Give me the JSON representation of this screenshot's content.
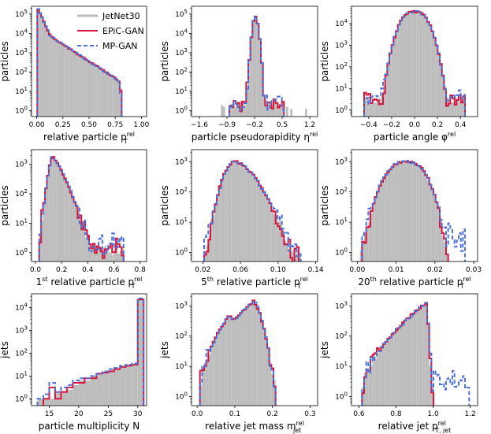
{
  "legend": {
    "placement": "top-right of first panel",
    "entries": [
      {
        "name": "JetNet30",
        "color": "#bdbdbd"
      },
      {
        "name": "EPiC-GAN",
        "color": "#d6163d"
      },
      {
        "name": "MP-GAN",
        "color": "#4a72d8"
      }
    ]
  },
  "chart_data": [
    {
      "type": "histogram",
      "xlabel": "relative particle p",
      "xlabel_sub": "T",
      "xlabel_sup": "rel",
      "ylabel": "particles",
      "yscale": "log",
      "xlim": [
        -0.05,
        1.05
      ],
      "ylim_exp": [
        -0.3,
        5.4
      ],
      "xticks": [
        0.0,
        0.25,
        0.5,
        0.75,
        1.0
      ],
      "xtick_labels": [
        "0.00",
        "0.25",
        "0.50",
        "0.75",
        "1.00"
      ],
      "yticks_exp": [
        0,
        1,
        2,
        3,
        4,
        5
      ],
      "shape": {
        "kind": "expdecay",
        "start": 0.0,
        "peak": 0.01,
        "end": 0.82,
        "peakExp": 5.3,
        "k1": 12,
        "k2": 3.2,
        "cut": 0.78
      }
    },
    {
      "type": "histogram",
      "xlabel": "particle pseudorapidity η",
      "xlabel_sub": "",
      "xlabel_sup": "rel",
      "ylabel": "particles",
      "yscale": "log",
      "xlim": [
        -1.8,
        1.4
      ],
      "ylim_exp": [
        -0.3,
        5.4
      ],
      "xticks": [
        -1.6,
        -0.9,
        -0.2,
        0.5,
        1.2
      ],
      "xtick_labels": [
        "−1.6",
        "−0.9",
        "−0.2",
        "0.5",
        "1.2"
      ],
      "yticks_exp": [
        0,
        1,
        2,
        3,
        4,
        5
      ],
      "shape": {
        "kind": "peak",
        "start": -0.82,
        "peak": -0.2,
        "end": 0.52,
        "peakExp": 4.9,
        "widthL": 0.22,
        "widthR": 0.25,
        "powL": 1.4,
        "powR": 2.2,
        "floorExp": 0.3,
        "outliers": [
          [
            -1.05,
            0.3
          ],
          [
            -0.95,
            0.2
          ],
          [
            0.6,
            0.2
          ],
          [
            0.75,
            0.1
          ],
          [
            1.1,
            0.1
          ]
        ]
      }
    },
    {
      "type": "histogram",
      "xlabel": "particle angle φ",
      "xlabel_sub": "",
      "xlabel_sup": "rel",
      "ylabel": "particles",
      "yscale": "log",
      "xlim": [
        -0.55,
        0.55
      ],
      "ylim_exp": [
        -0.3,
        4.8
      ],
      "xticks": [
        -0.4,
        -0.2,
        0.0,
        0.2,
        0.4
      ],
      "xtick_labels": [
        "−0.4",
        "−0.2",
        "0.0",
        "0.2",
        "0.4"
      ],
      "yticks_exp": [
        0,
        1,
        2,
        3,
        4
      ],
      "shape": {
        "kind": "peak",
        "start": -0.44,
        "peak": 0.0,
        "end": 0.44,
        "peakExp": 4.55,
        "widthL": 0.28,
        "widthR": 0.28,
        "powL": 2.6,
        "powR": 2.6,
        "floorExp": 0.5
      }
    },
    {
      "type": "histogram",
      "xlabel": "1",
      "xlabel_sup1": "st",
      "xlabel_mid": " relative particle p",
      "xlabel_sub": "T",
      "xlabel_sup": "rel",
      "ylabel": "particles",
      "yscale": "log",
      "xlim": [
        -0.03,
        0.85
      ],
      "ylim_exp": [
        -0.3,
        3.5
      ],
      "xticks": [
        0.0,
        0.2,
        0.4,
        0.6,
        0.8
      ],
      "xtick_labels": [
        "0.0",
        "0.2",
        "0.4",
        "0.6",
        "0.8"
      ],
      "yticks_exp": [
        0,
        1,
        2,
        3
      ],
      "shape": {
        "kind": "peak",
        "start": 0.03,
        "peak": 0.13,
        "end": 0.68,
        "peakExp": 3.25,
        "widthL": 0.1,
        "widthR": 0.3,
        "powL": 1.6,
        "powR": 1.3,
        "floorExp": 0.1
      }
    },
    {
      "type": "histogram",
      "xlabel": "5",
      "xlabel_sup1": "th",
      "xlabel_mid": " relative particle p",
      "xlabel_sub": "T",
      "xlabel_sup": "rel",
      "ylabel": "particles",
      "yscale": "log",
      "xlim": [
        0.008,
        0.142
      ],
      "ylim_exp": [
        -0.3,
        3.4
      ],
      "xticks": [
        0.02,
        0.06,
        0.1,
        0.14
      ],
      "xtick_labels": [
        "0.02",
        "0.06",
        "0.10",
        "0.14"
      ],
      "yticks_exp": [
        0,
        1,
        2,
        3
      ],
      "shape": {
        "kind": "peak",
        "start": 0.022,
        "peak": 0.054,
        "end": 0.125,
        "peakExp": 3.0,
        "widthL": 0.03,
        "widthR": 0.06,
        "powL": 2.0,
        "powR": 1.7,
        "floorExp": 0.0
      }
    },
    {
      "type": "histogram",
      "xlabel": "20",
      "xlabel_sup1": "th",
      "xlabel_mid": " relative particle p",
      "xlabel_sub": "T",
      "xlabel_sup": "rel",
      "ylabel": "particles",
      "yscale": "log",
      "xlim": [
        -0.0015,
        0.031
      ],
      "ylim_exp": [
        -0.3,
        3.4
      ],
      "xticks": [
        0.0,
        0.01,
        0.02,
        0.03
      ],
      "xtick_labels": [
        "0.00",
        "0.01",
        "0.02",
        "0.03"
      ],
      "yticks_exp": [
        0,
        1,
        2,
        3
      ],
      "shape": {
        "kind": "peak",
        "start": 0.0005,
        "peak": 0.0125,
        "end": 0.0235,
        "peakExp": 3.0,
        "widthL": 0.0115,
        "widthR": 0.0105,
        "powL": 2.4,
        "powR": 2.8,
        "floorExp": 0.0
      }
    },
    {
      "type": "histogram",
      "xlabel": "particle multiplicity N",
      "xlabel_sub": "",
      "xlabel_sup": "",
      "ylabel": "jets",
      "yscale": "log",
      "xlim": [
        12,
        31.5
      ],
      "ylim_exp": [
        -0.3,
        4.6
      ],
      "xticks": [
        15,
        20,
        25,
        30
      ],
      "xtick_labels": [
        "15",
        "20",
        "25",
        "30"
      ],
      "yticks_exp": [
        0,
        1,
        2,
        3,
        4
      ],
      "bins_x": [
        13,
        14,
        15,
        16,
        17,
        18,
        19,
        20,
        21,
        22,
        23,
        24,
        25,
        26,
        27,
        28,
        29,
        30,
        31
      ],
      "real_exp": [
        0.0,
        0.0,
        0.0,
        0.3,
        0.3,
        0.4,
        0.6,
        0.8,
        0.8,
        1.0,
        1.1,
        1.15,
        1.25,
        1.3,
        1.4,
        1.45,
        1.5,
        4.35
      ],
      "epic_exp": [
        null,
        0.0,
        0.5,
        0.0,
        0.3,
        0.5,
        0.7,
        0.7,
        0.9,
        0.9,
        1.1,
        1.15,
        1.2,
        1.3,
        1.4,
        1.45,
        1.5,
        4.35
      ],
      "mp_exp": [
        0.0,
        0.2,
        0.7,
        0.3,
        0.5,
        0.6,
        0.8,
        0.9,
        0.9,
        1.0,
        1.1,
        1.2,
        1.3,
        1.35,
        1.45,
        1.5,
        1.55,
        4.4
      ]
    },
    {
      "type": "histogram",
      "xlabel": "relative jet mass m",
      "xlabel_sub": "jet",
      "xlabel_sup": "rel",
      "ylabel": "jets",
      "yscale": "log",
      "xlim": [
        -0.015,
        0.32
      ],
      "ylim_exp": [
        -0.3,
        3.4
      ],
      "xticks": [
        0.0,
        0.1,
        0.2,
        0.3
      ],
      "xtick_labels": [
        "0.0",
        "0.1",
        "0.2",
        "0.3"
      ],
      "yticks_exp": [
        0,
        1,
        2,
        3
      ],
      "shape": {
        "kind": "bimodal",
        "start": 0.008,
        "end": 0.21,
        "peakExp": 3.15,
        "floorExp": 0.0
      }
    },
    {
      "type": "histogram",
      "xlabel": "relative jet p",
      "xlabel_sub": "T, jet",
      "xlabel_sup": "rel",
      "ylabel": "jets",
      "yscale": "log",
      "xlim": [
        0.56,
        1.24
      ],
      "ylim_exp": [
        -0.3,
        3.4
      ],
      "xticks": [
        0.6,
        0.8,
        1.0,
        1.2
      ],
      "xtick_labels": [
        "0.6",
        "0.8",
        "1.0",
        "1.2"
      ],
      "yticks_exp": [
        0,
        1,
        2,
        3
      ],
      "shape": {
        "kind": "jetpt",
        "start": 0.62,
        "peak": 0.97,
        "end": 1.0,
        "peakExp": 3.15,
        "floorExp": 0.0
      }
    }
  ]
}
